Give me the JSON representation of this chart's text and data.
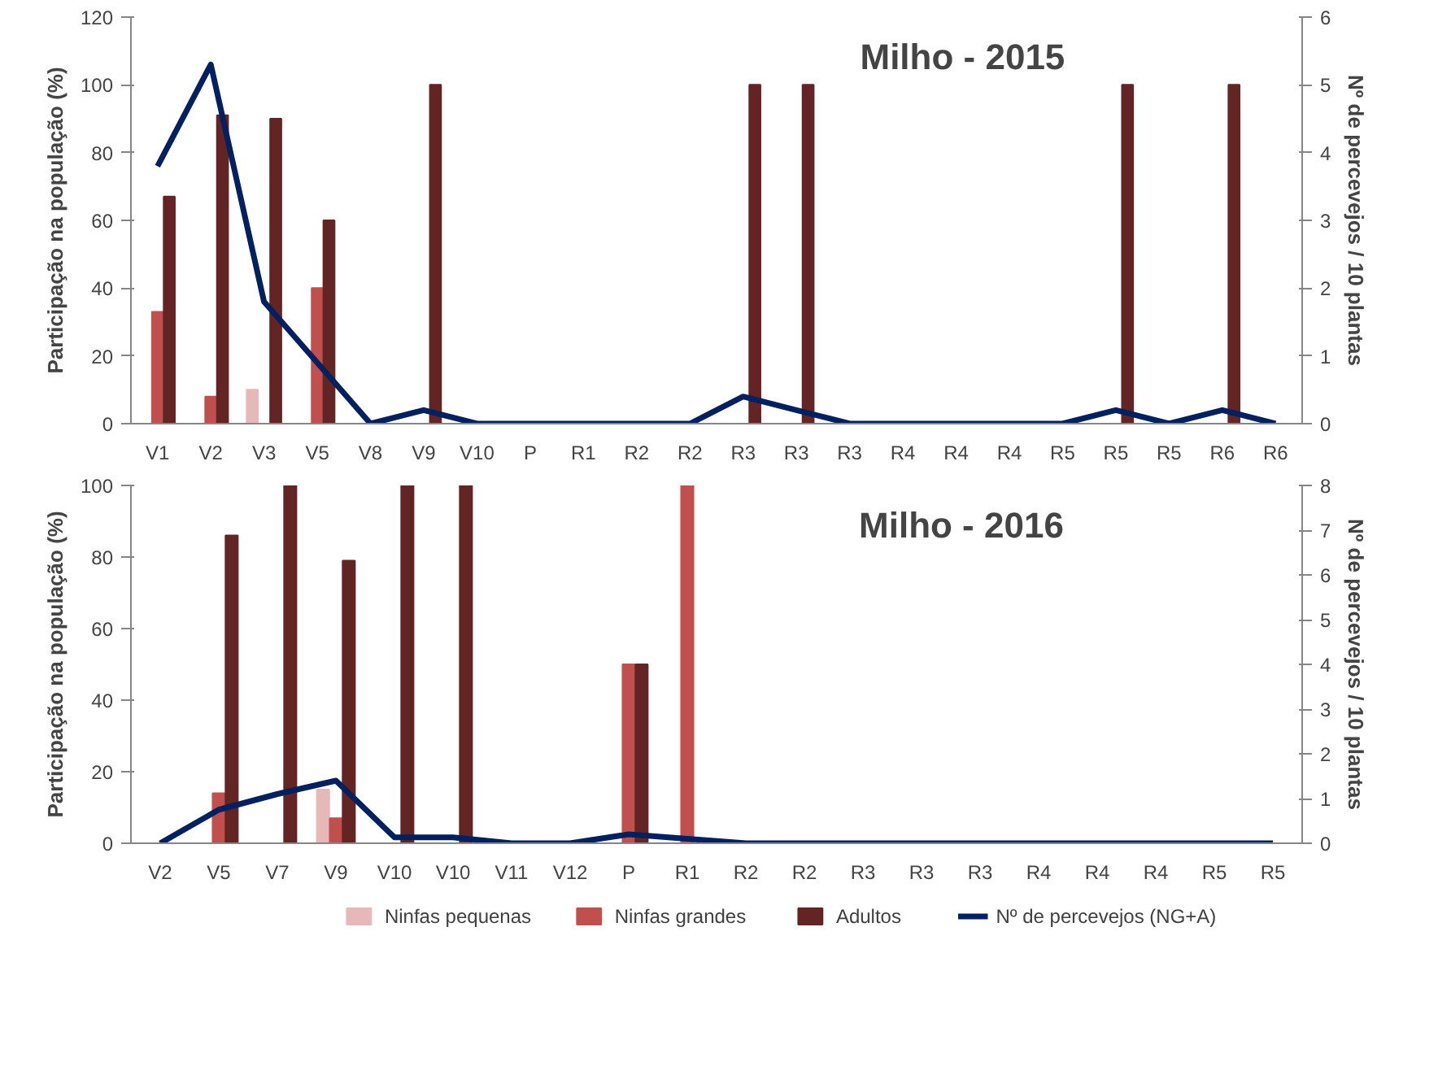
{
  "chart_data": [
    {
      "type": "bar",
      "title": "Milho - 2015",
      "ylabel": "Participação na população (%)",
      "y2label": "Nº de percevejos / 10 plantas",
      "categories": [
        "V1",
        "V2",
        "V3",
        "V5",
        "V8",
        "V9",
        "V10",
        "P",
        "R1",
        "R2",
        "R2",
        "R3",
        "R3",
        "R3",
        "R4",
        "R4",
        "R4",
        "R5",
        "R5",
        "R5",
        "R6",
        "R6"
      ],
      "series": [
        {
          "color": "#e6b9b8",
          "values": [
            null,
            null,
            10,
            null,
            null,
            null,
            null,
            null,
            null,
            null,
            null,
            null,
            null,
            null,
            null,
            null,
            null,
            null,
            null,
            null,
            null,
            null
          ]
        },
        {
          "color": "#c0504d",
          "values": [
            33,
            8,
            null,
            40,
            null,
            null,
            null,
            null,
            null,
            null,
            null,
            null,
            null,
            null,
            null,
            null,
            null,
            null,
            null,
            null,
            null,
            null
          ]
        },
        {
          "color": "#632523",
          "values": [
            67,
            91,
            90,
            60,
            null,
            100,
            null,
            null,
            null,
            null,
            null,
            100,
            100,
            null,
            null,
            null,
            null,
            null,
            100,
            null,
            100,
            null
          ]
        },
        {
          "type": "line",
          "axis": "y2",
          "color": "#002060",
          "values": [
            3.8,
            5.3,
            1.8,
            0.9,
            0,
            0.2,
            0,
            0,
            0,
            0,
            0,
            0.4,
            0.2,
            0,
            0,
            0,
            0,
            0,
            0.2,
            0,
            0.2,
            0
          ]
        }
      ],
      "ylim": [
        0,
        120
      ],
      "yticks": [
        0,
        20,
        40,
        60,
        80,
        100,
        120
      ],
      "y2lim": [
        0,
        6
      ],
      "y2ticks": [
        0,
        1,
        2,
        3,
        4,
        5,
        6
      ],
      "grid": false
    },
    {
      "type": "bar",
      "title": "Milho - 2016",
      "ylabel": "Participação na população (%)",
      "y2label": "Nº de percevejos / 10 plantas",
      "categories": [
        "V2",
        "V5",
        "V7",
        "V9",
        "V10",
        "V10",
        "V11",
        "V12",
        "P",
        "R1",
        "R2",
        "R2",
        "R3",
        "R3",
        "R3",
        "R4",
        "R4",
        "R4",
        "R5",
        "R5"
      ],
      "series": [
        {
          "name": "Ninfas pequenas",
          "color": "#e6b9b8",
          "values": [
            null,
            null,
            null,
            15,
            null,
            null,
            null,
            null,
            null,
            null,
            null,
            null,
            null,
            null,
            null,
            null,
            null,
            null,
            null,
            null
          ]
        },
        {
          "name": "Ninfas grandes",
          "color": "#c0504d",
          "values": [
            null,
            14,
            null,
            7,
            null,
            null,
            null,
            null,
            50,
            100,
            null,
            null,
            null,
            null,
            null,
            null,
            null,
            null,
            null,
            null
          ]
        },
        {
          "name": "Adultos",
          "color": "#632523",
          "values": [
            null,
            86,
            100,
            79,
            100,
            100,
            null,
            null,
            50,
            null,
            null,
            null,
            null,
            null,
            null,
            null,
            null,
            null,
            null,
            null
          ]
        },
        {
          "name": "Nº de percevejos  (NG+A)",
          "type": "line",
          "axis": "y2",
          "color": "#002060",
          "values": [
            0,
            0.75,
            1.1,
            1.4,
            0.13,
            0.13,
            0,
            0,
            0.2,
            0.1,
            0,
            0,
            0,
            0,
            0,
            0,
            0,
            0,
            0,
            0
          ]
        }
      ],
      "ylim": [
        0,
        100
      ],
      "yticks": [
        0,
        20,
        40,
        60,
        80,
        100
      ],
      "y2lim": [
        0,
        8
      ],
      "y2ticks": [
        0,
        1,
        2,
        3,
        4,
        5,
        6,
        7,
        8
      ],
      "grid": false,
      "legend": "bottom"
    }
  ]
}
